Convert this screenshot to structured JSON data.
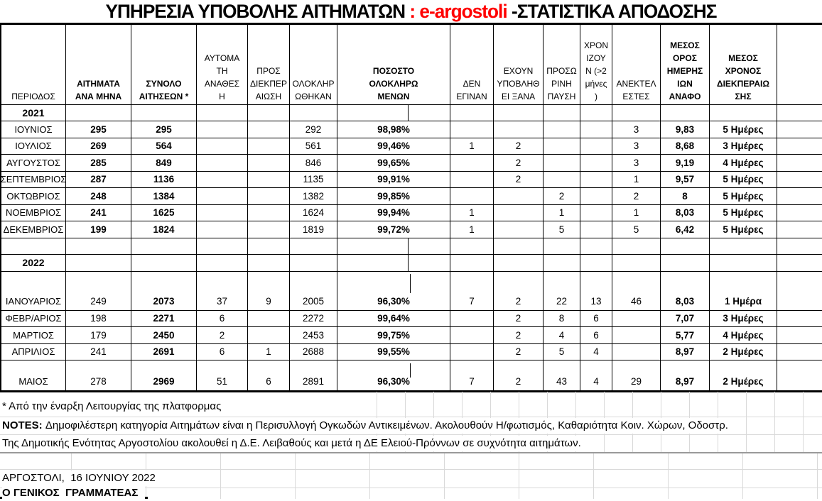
{
  "title": {
    "part1": "ΥΠΗΡΕΣΙΑ ΥΠΟΒΟΛΗΣ ΑΙΤΗΜΑΤΩΝ ",
    "part2": ": e-argostoli ",
    "part3": "-ΣΤΑΤΙΣΤΙΚΑ ΑΠΟΔΟΣΗΣ"
  },
  "colors": {
    "accent_red": "#ff0000",
    "grid_black": "#000000",
    "grid_gray": "#d9d9d9"
  },
  "table": {
    "headers": [
      "ΠΕΡΙΟΔΟΣ",
      "ΑΙΤΗΜΑΤΑ\nΑΝΑ ΜΗΝΑ",
      "ΣΥΝΟΛΟ\nΑΙΤΗΣΕΩΝ *",
      "ΑΥΤΟΜΑ\nΤΗ\nΑΝΑΘΕΣ\nΗ",
      "ΠΡΟΣ\nΔΙΕΚΠΕΡ\nΑΙΩΣΗ",
      "ΟΛΟΚΛΗΡ\nΩΘΗΚΑΝ",
      "ΠΟΣΟΣΤΟ\nΟΛΟΚΛΗΡΩ\nΜΕΝΩΝ",
      "ΔΕΝ\nΕΓΙΝΑΝ",
      "ΕΧΟΥΝ\nΥΠΟΒΛΗΘ\nΕΙ ΞΑΝΑ",
      "ΠΡΟΣΩ\nΡΙΝΗ\nΠΑΥΣΗ",
      "ΧΡΟΝ\nΙΖΟΥ\nΝ (>2\nμήνες\n)",
      "ΑΝΕΚΤΕΛ\nΕΣΤΕΣ",
      "ΜΕΣΟΣ\nΟΡΟΣ\nΗΜΕΡΗΣ\nΙΩΝ\nΑΝΑΦΟ",
      "ΜΕΣΟΣ\nΧΡΟΝΟΣ\nΔΙΕΚΠΕΡΑΙΩ\nΣΗΣ"
    ],
    "sections": [
      {
        "year": "2021",
        "rows": [
          [
            "ΙΟΥΝΙΟΣ",
            "295",
            "295",
            "",
            "",
            "292",
            "98,98%",
            "",
            "",
            "",
            "",
            "3",
            "9,83",
            "5 Ημέρες"
          ],
          [
            "ΙΟΥΛΙΟΣ",
            "269",
            "564",
            "",
            "",
            "561",
            "99,46%",
            "1",
            "2",
            "",
            "",
            "3",
            "8,68",
            "3 Ημέρες"
          ],
          [
            "ΑΥΓΟΥΣΤΟΣ",
            "285",
            "849",
            "",
            "",
            "846",
            "99,65%",
            "",
            "2",
            "",
            "",
            "3",
            "9,19",
            "4 Ημέρες"
          ],
          [
            "ΣΕΠΤΕΜΒΡΙΟΣ",
            "287",
            "1136",
            "",
            "",
            "1135",
            "99,91%",
            "",
            "2",
            "",
            "",
            "1",
            "9,57",
            "5 Ημέρες"
          ],
          [
            "ΟΚΤΩΒΡΙΟΣ",
            "248",
            "1384",
            "",
            "",
            "1382",
            "99,85%",
            "",
            "",
            "2",
            "",
            "2",
            "8",
            "5 Ημέρες"
          ],
          [
            "ΝΟΕΜΒΡΙΟΣ",
            "241",
            "1625",
            "",
            "",
            "1624",
            "99,94%",
            "1",
            "",
            "1",
            "",
            "1",
            "8,03",
            "5 Ημέρες"
          ],
          [
            "ΔΕΚΕΜΒΡΙΟΣ",
            "199",
            "1824",
            "",
            "",
            "1819",
            "99,72%",
            "1",
            "",
            "5",
            "",
            "5",
            "6,42",
            "5 Ημέρες"
          ]
        ]
      },
      {
        "year": "2022",
        "rows": [
          [
            "ΙΑΝΟΥΑΡΙΟΣ",
            "249",
            "2073",
            "37",
            "9",
            "2005",
            "96,30%",
            "7",
            "2",
            "22",
            "13",
            "46",
            "8,03",
            "1 Ημέρα"
          ],
          [
            "ΦΕΒΡ/ΑΡΙΟΣ",
            "198",
            "2271",
            "6",
            "",
            "2272",
            "99,64%",
            "",
            "2",
            "8",
            "6",
            "",
            "7,07",
            "3 Ημέρες"
          ],
          [
            "ΜΑΡΤΙΟΣ",
            "179",
            "2450",
            "2",
            "",
            "2453",
            "99,75%",
            "",
            "2",
            "4",
            "6",
            "",
            "5,77",
            "4 Ημέρες"
          ],
          [
            "ΑΠΡΙΛΙΟΣ",
            "241",
            "2691",
            "6",
            "1",
            "2688",
            "99,55%",
            "",
            "2",
            "5",
            "4",
            "",
            "8,97",
            "2 Ημέρες"
          ],
          [
            "ΜΑΙΟΣ",
            "278",
            "2969",
            "51",
            "6",
            "2891",
            "96,30%",
            "7",
            "2",
            "43",
            "4",
            "29",
            "8,97",
            "2 Ημέρες"
          ]
        ]
      }
    ]
  },
  "footer": {
    "footnote": "* Από την έναρξη Λειτουργίας της πλατφορμας",
    "notes_label": "NOTES:",
    "notes_text": " Δημοφιλέστερη κατηγορία Αιτημάτων είναι η Περισυλλογή Ογκωδών Αντικειμένων. Ακολουθούν Η/φωτισμός, Καθαριότητα Κοιν. Χώρων, Οδοστρ.",
    "notes_text2": "Της Δημοτικής Ενότητας Αργοστολίου ακολουθεί η Δ.Ε. Λειβαθούς και μετά η ΔΕ Ελειού-Πρόννων σε συχνότητα αιτημάτων.",
    "place_date": "ΑΡΓΟΣΤΟΛΙ,  16 ΙΟΥΝΙΟΥ 2022",
    "signature": "Ο ΓΕΝΙΚΟΣ  ΓΡΑΜΜΑΤΕΑΣ"
  }
}
